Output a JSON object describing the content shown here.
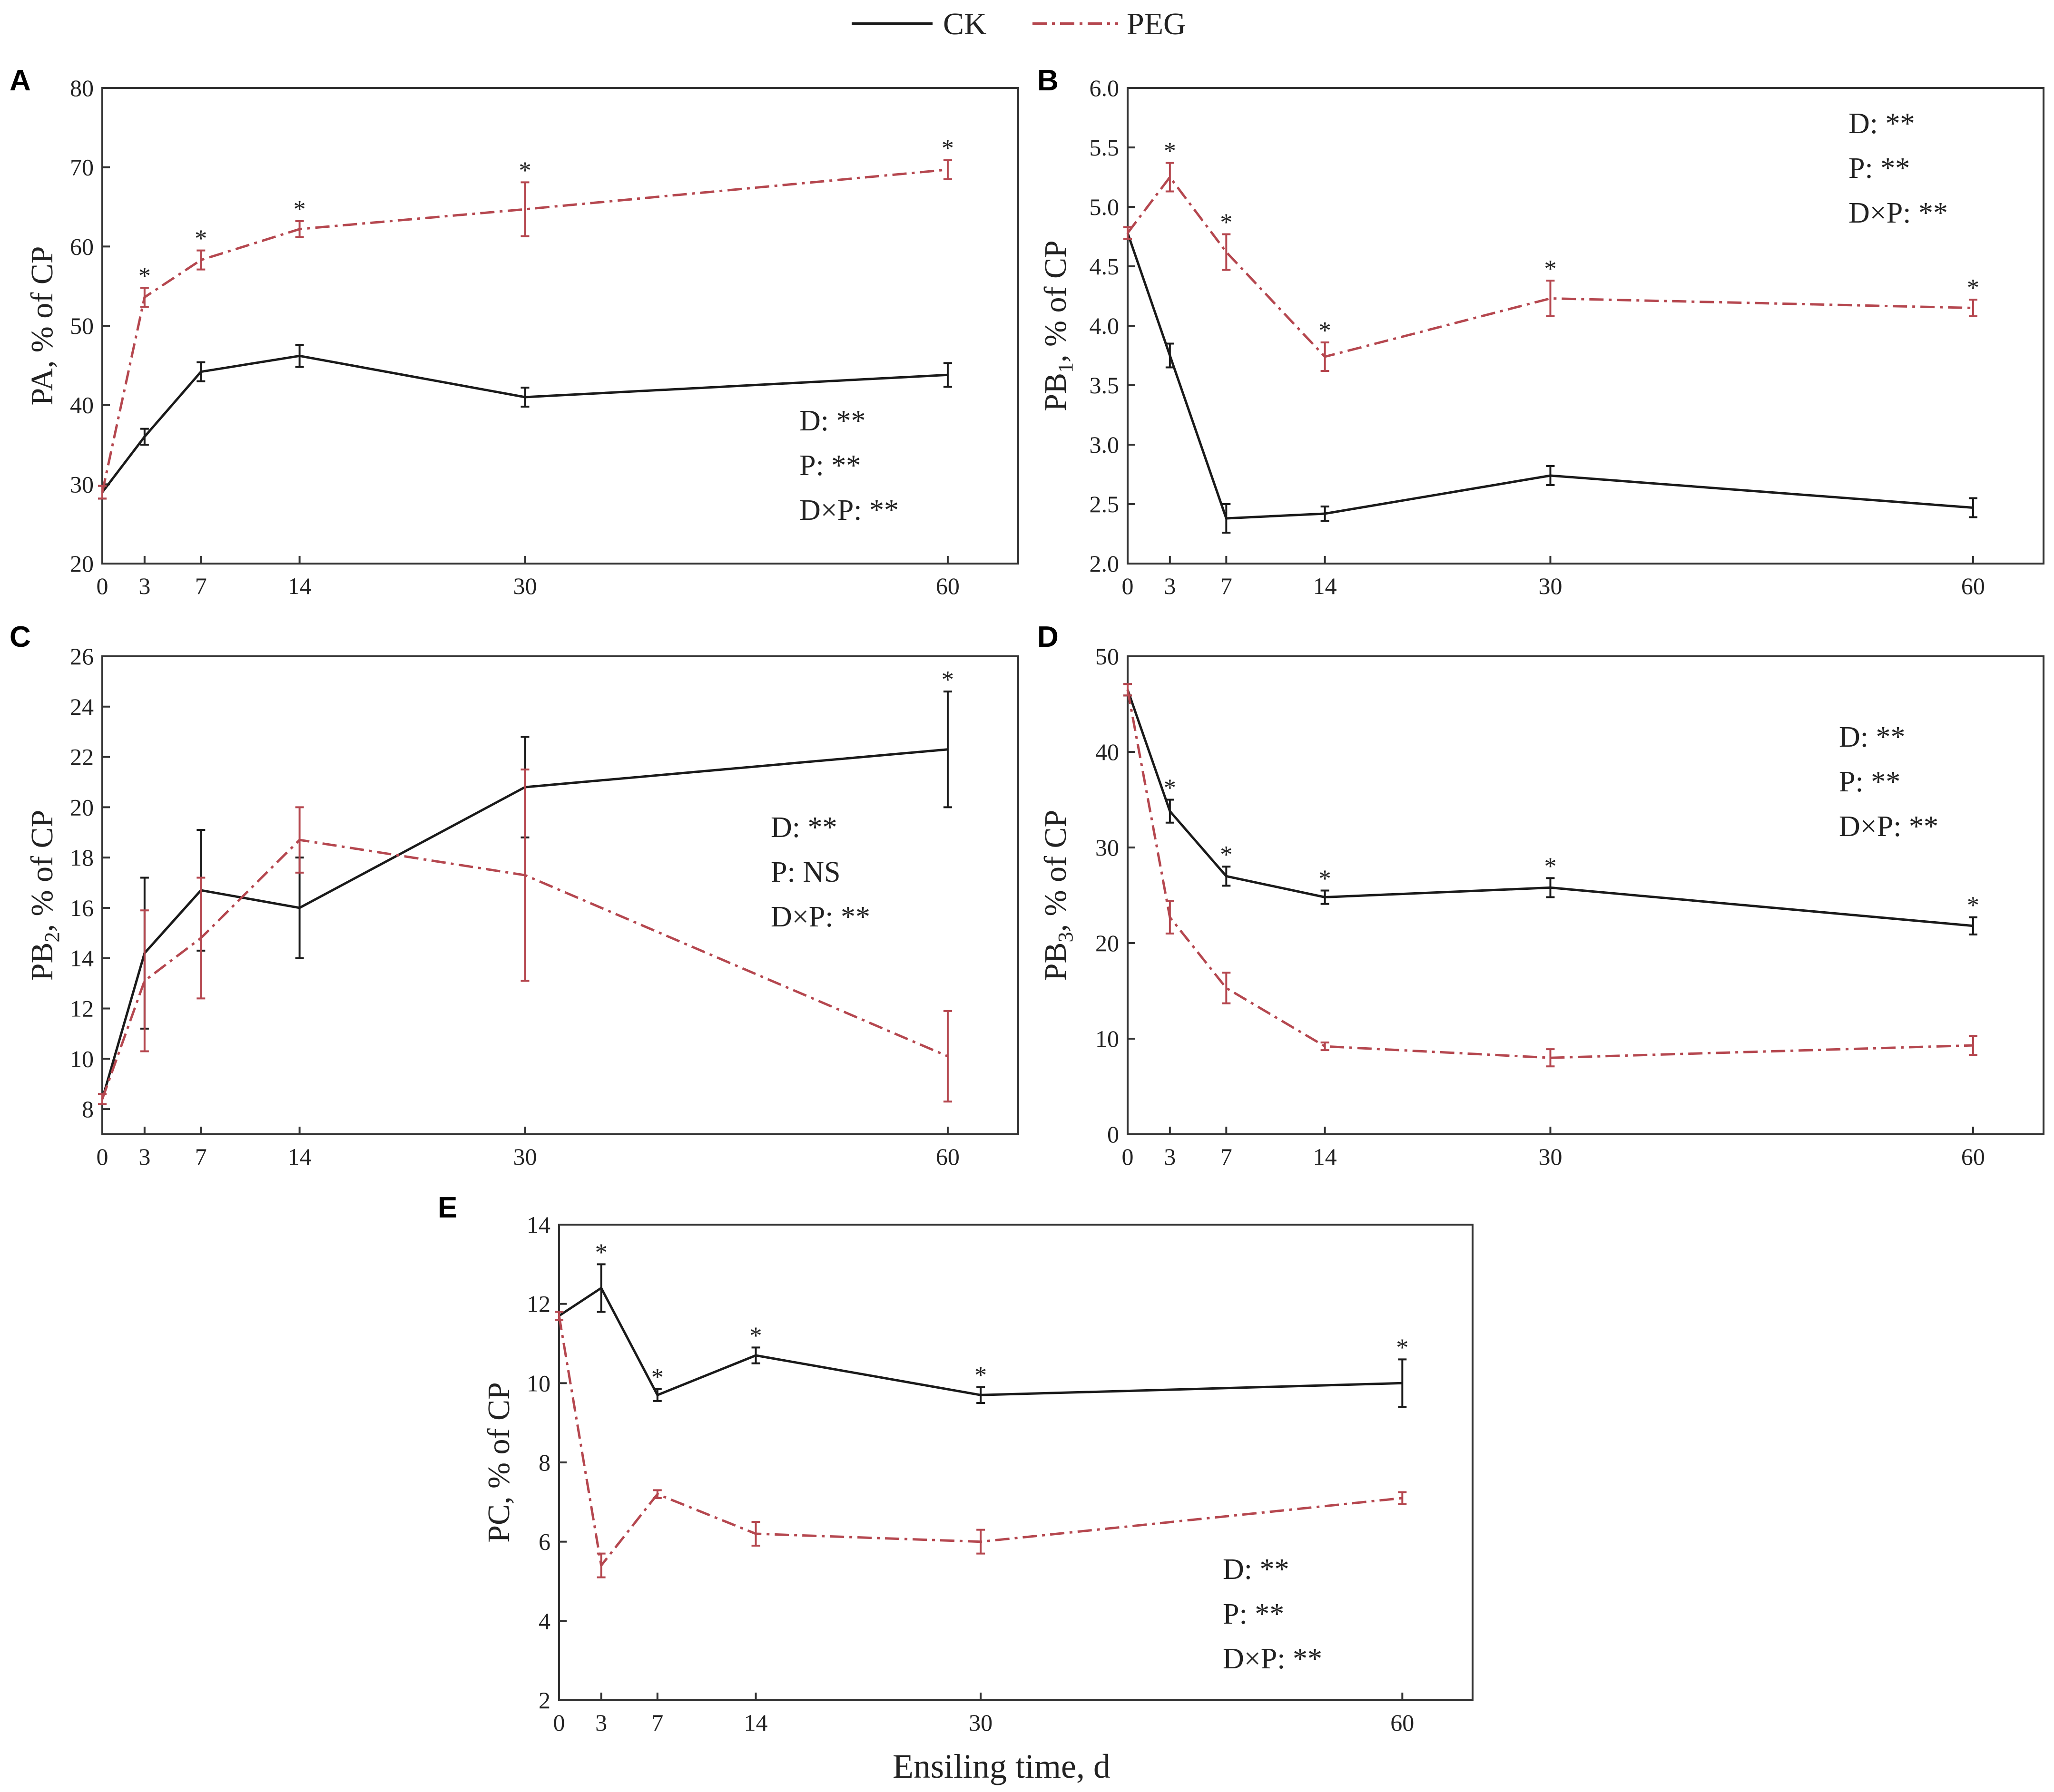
{
  "legend": {
    "ck": "CK",
    "peg": "PEG"
  },
  "colors": {
    "ck": "#1a1a1a",
    "peg": "#b5474f",
    "axis": "#333333"
  },
  "xlabel": "Ensiling time, d",
  "chart_data": [
    {
      "id": "A",
      "panel_label": "A",
      "type": "line",
      "ylabel": "PA, % of CP",
      "x": [
        0,
        3,
        7,
        14,
        30,
        60
      ],
      "x_tick_labels": [
        "0",
        "3",
        "7",
        "14",
        "30",
        "60"
      ],
      "xlim": [
        0,
        65
      ],
      "ylim": [
        20,
        80
      ],
      "y_ticks": [
        20,
        30,
        40,
        50,
        60,
        70,
        80
      ],
      "y_tick_labels": [
        "20",
        "30",
        "40",
        "50",
        "60",
        "70",
        "80"
      ],
      "stats": [
        "D: **",
        "P: **",
        "D×P: **"
      ],
      "stats_position": "bottom-right",
      "series": [
        {
          "name": "CK",
          "key": "ck",
          "values": [
            29.0,
            36.0,
            44.2,
            46.2,
            41.0,
            43.8
          ],
          "errors": [
            0.8,
            1.0,
            1.2,
            1.4,
            1.2,
            1.5
          ]
        },
        {
          "name": "PEG",
          "key": "peg",
          "values": [
            29.0,
            53.6,
            58.3,
            62.2,
            64.7,
            69.7
          ],
          "errors": [
            0.8,
            1.2,
            1.2,
            1.0,
            3.4,
            1.2
          ]
        }
      ],
      "significance": [
        {
          "x": 3,
          "label": "*"
        },
        {
          "x": 7,
          "label": "*"
        },
        {
          "x": 14,
          "label": "*"
        },
        {
          "x": 30,
          "label": "*"
        },
        {
          "x": 60,
          "label": "*"
        }
      ]
    },
    {
      "id": "B",
      "panel_label": "B",
      "type": "line",
      "ylabel": "PB1, % of CP",
      "ylabel_parts": [
        "PB",
        "1",
        ", % of CP"
      ],
      "x": [
        0,
        3,
        7,
        14,
        30,
        60
      ],
      "x_tick_labels": [
        "0",
        "3",
        "7",
        "14",
        "30",
        "60"
      ],
      "xlim": [
        0,
        65
      ],
      "ylim": [
        2.0,
        6.0
      ],
      "y_ticks": [
        2.0,
        2.5,
        3.0,
        3.5,
        4.0,
        4.5,
        5.0,
        5.5,
        6.0
      ],
      "y_tick_labels": [
        "2.0",
        "2.5",
        "3.0",
        "3.5",
        "4.0",
        "4.5",
        "5.0",
        "5.5",
        "6.0"
      ],
      "stats": [
        "D: **",
        "P: **",
        "D×P: **"
      ],
      "stats_position": "top-right",
      "series": [
        {
          "name": "CK",
          "key": "ck",
          "values": [
            4.78,
            3.75,
            2.38,
            2.42,
            2.74,
            2.47
          ],
          "errors": [
            0.05,
            0.1,
            0.12,
            0.06,
            0.08,
            0.08
          ]
        },
        {
          "name": "PEG",
          "key": "peg",
          "values": [
            4.78,
            5.25,
            4.62,
            3.74,
            4.23,
            4.15
          ],
          "errors": [
            0.05,
            0.12,
            0.15,
            0.12,
            0.15,
            0.07
          ]
        }
      ],
      "significance": [
        {
          "x": 3,
          "label": "*"
        },
        {
          "x": 7,
          "label": "*"
        },
        {
          "x": 14,
          "label": "*"
        },
        {
          "x": 30,
          "label": "*"
        },
        {
          "x": 60,
          "label": "*"
        }
      ]
    },
    {
      "id": "C",
      "panel_label": "C",
      "type": "line",
      "ylabel": "PB2, % of CP",
      "ylabel_parts": [
        "PB",
        "2",
        ", % of CP"
      ],
      "x": [
        0,
        3,
        7,
        14,
        30,
        60
      ],
      "x_tick_labels": [
        "0",
        "3",
        "7",
        "14",
        "30",
        "60"
      ],
      "xlim": [
        0,
        65
      ],
      "ylim": [
        7,
        26
      ],
      "y_ticks": [
        8,
        10,
        12,
        14,
        16,
        18,
        20,
        22,
        24,
        26
      ],
      "y_tick_labels": [
        "8",
        "10",
        "12",
        "14",
        "16",
        "18",
        "20",
        "22",
        "24",
        "26"
      ],
      "stats": [
        "D: **",
        "P: NS",
        "D×P: **"
      ],
      "stats_position": "right",
      "series": [
        {
          "name": "CK",
          "key": "ck",
          "values": [
            8.4,
            14.2,
            16.7,
            16.0,
            20.8,
            22.3
          ],
          "errors": [
            0.2,
            3.0,
            2.4,
            2.0,
            2.0,
            2.3
          ]
        },
        {
          "name": "PEG",
          "key": "peg",
          "values": [
            8.4,
            13.1,
            14.8,
            18.7,
            17.3,
            10.1
          ],
          "errors": [
            0.2,
            2.8,
            2.4,
            1.3,
            4.2,
            1.8
          ]
        }
      ],
      "significance": [
        {
          "x": 60,
          "label": "*"
        }
      ]
    },
    {
      "id": "D",
      "panel_label": "D",
      "type": "line",
      "ylabel": "PB3, % of CP",
      "ylabel_parts": [
        "PB",
        "3",
        ", % of CP"
      ],
      "x": [
        0,
        3,
        7,
        14,
        30,
        60
      ],
      "x_tick_labels": [
        "0",
        "3",
        "7",
        "14",
        "30",
        "60"
      ],
      "xlim": [
        0,
        65
      ],
      "ylim": [
        0,
        50
      ],
      "y_ticks": [
        0,
        10,
        20,
        30,
        40,
        50
      ],
      "y_tick_labels": [
        "0",
        "10",
        "20",
        "30",
        "40",
        "50"
      ],
      "stats": [
        "D: **",
        "P: **",
        "D×P: **"
      ],
      "stats_position": "right",
      "series": [
        {
          "name": "CK",
          "key": "ck",
          "values": [
            46.5,
            33.8,
            27.0,
            24.8,
            25.8,
            21.8
          ],
          "errors": [
            0.6,
            1.2,
            1.0,
            0.7,
            1.0,
            0.9
          ]
        },
        {
          "name": "PEG",
          "key": "peg",
          "values": [
            46.5,
            22.7,
            15.3,
            9.2,
            8.0,
            9.3
          ],
          "errors": [
            0.6,
            1.7,
            1.6,
            0.4,
            0.9,
            1.0
          ]
        }
      ],
      "significance": [
        {
          "x": 3,
          "label": "*"
        },
        {
          "x": 7,
          "label": "*"
        },
        {
          "x": 14,
          "label": "*"
        },
        {
          "x": 30,
          "label": "*"
        },
        {
          "x": 60,
          "label": "*"
        }
      ]
    },
    {
      "id": "E",
      "panel_label": "E",
      "type": "line",
      "ylabel": "PC, % of CP",
      "x": [
        0,
        3,
        7,
        14,
        30,
        60
      ],
      "x_tick_labels": [
        "0",
        "3",
        "7",
        "14",
        "30",
        "60"
      ],
      "xlim": [
        0,
        65
      ],
      "ylim": [
        2,
        14
      ],
      "y_ticks": [
        2,
        4,
        6,
        8,
        10,
        12,
        14
      ],
      "y_tick_labels": [
        "2",
        "4",
        "6",
        "8",
        "10",
        "12",
        "14"
      ],
      "stats": [
        "D: **",
        "P: **",
        "D×P: **"
      ],
      "stats_position": "bottom-right",
      "series": [
        {
          "name": "CK",
          "key": "ck",
          "values": [
            11.7,
            12.4,
            9.7,
            10.7,
            9.7,
            10.0
          ],
          "errors": [
            0.1,
            0.6,
            0.15,
            0.2,
            0.2,
            0.6
          ]
        },
        {
          "name": "PEG",
          "key": "peg",
          "values": [
            11.7,
            5.4,
            7.2,
            6.2,
            6.0,
            7.1
          ],
          "errors": [
            0.1,
            0.3,
            0.1,
            0.3,
            0.3,
            0.15
          ]
        }
      ],
      "significance": [
        {
          "x": 3,
          "label": "*"
        },
        {
          "x": 7,
          "label": "*"
        },
        {
          "x": 14,
          "label": "*"
        },
        {
          "x": 30,
          "label": "*"
        },
        {
          "x": 60,
          "label": "*"
        }
      ]
    }
  ]
}
